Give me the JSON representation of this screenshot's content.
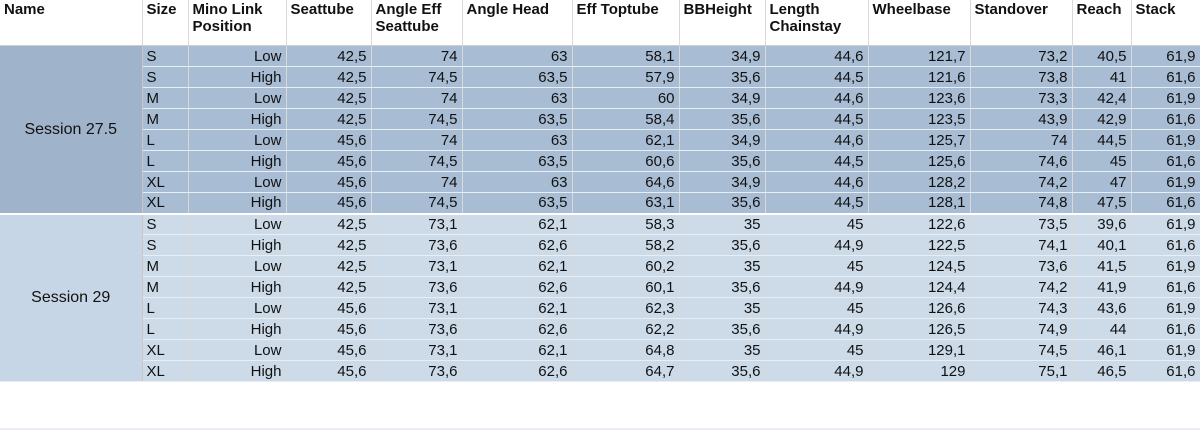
{
  "table": {
    "headers": [
      "Name",
      "Size",
      "Mino Link Position",
      "Seattube",
      "Angle Eff Seattube",
      "Angle Head",
      "Eff Toptube",
      "BBHeight",
      "Length Chainstay",
      "Wheelbase",
      "Standover",
      "Reach",
      "Stack"
    ],
    "groups": [
      {
        "name": "Session 27.5",
        "rows": [
          [
            "S",
            "Low",
            "42,5",
            "74",
            "63",
            "58,1",
            "34,9",
            "44,6",
            "121,7",
            "73,2",
            "40,5",
            "61,9"
          ],
          [
            "S",
            "High",
            "42,5",
            "74,5",
            "63,5",
            "57,9",
            "35,6",
            "44,5",
            "121,6",
            "73,8",
            "41",
            "61,6"
          ],
          [
            "M",
            "Low",
            "42,5",
            "74",
            "63",
            "60",
            "34,9",
            "44,6",
            "123,6",
            "73,3",
            "42,4",
            "61,9"
          ],
          [
            "M",
            "High",
            "42,5",
            "74,5",
            "63,5",
            "58,4",
            "35,6",
            "44,5",
            "123,5",
            "43,9",
            "42,9",
            "61,6"
          ],
          [
            "L",
            "Low",
            "45,6",
            "74",
            "63",
            "62,1",
            "34,9",
            "44,6",
            "125,7",
            "74",
            "44,5",
            "61,9"
          ],
          [
            "L",
            "High",
            "45,6",
            "74,5",
            "63,5",
            "60,6",
            "35,6",
            "44,5",
            "125,6",
            "74,6",
            "45",
            "61,6"
          ],
          [
            "XL",
            "Low",
            "45,6",
            "74",
            "63",
            "64,6",
            "34,9",
            "44,6",
            "128,2",
            "74,2",
            "47",
            "61,9"
          ],
          [
            "XL",
            "High",
            "45,6",
            "74,5",
            "63,5",
            "63,1",
            "35,6",
            "44,5",
            "128,1",
            "74,8",
            "47,5",
            "61,6"
          ]
        ]
      },
      {
        "name": "Session 29",
        "rows": [
          [
            "S",
            "Low",
            "42,5",
            "73,1",
            "62,1",
            "58,3",
            "35",
            "45",
            "122,6",
            "73,5",
            "39,6",
            "61,9"
          ],
          [
            "S",
            "High",
            "42,5",
            "73,6",
            "62,6",
            "58,2",
            "35,6",
            "44,9",
            "122,5",
            "74,1",
            "40,1",
            "61,6"
          ],
          [
            "M",
            "Low",
            "42,5",
            "73,1",
            "62,1",
            "60,2",
            "35",
            "45",
            "124,5",
            "73,6",
            "41,5",
            "61,9"
          ],
          [
            "M",
            "High",
            "42,5",
            "73,6",
            "62,6",
            "60,1",
            "35,6",
            "44,9",
            "124,4",
            "74,2",
            "41,9",
            "61,6"
          ],
          [
            "L",
            "Low",
            "45,6",
            "73,1",
            "62,1",
            "62,3",
            "35",
            "45",
            "126,6",
            "74,3",
            "43,6",
            "61,9"
          ],
          [
            "L",
            "High",
            "45,6",
            "73,6",
            "62,6",
            "62,2",
            "35,6",
            "44,9",
            "126,5",
            "74,9",
            "44",
            "61,6"
          ],
          [
            "XL",
            "Low",
            "45,6",
            "73,1",
            "62,1",
            "64,8",
            "35",
            "45",
            "129,1",
            "74,5",
            "46,1",
            "61,9"
          ],
          [
            "XL",
            "High",
            "45,6",
            "73,6",
            "62,6",
            "64,7",
            "35,6",
            "44,9",
            "129",
            "75,1",
            "46,5",
            "61,6"
          ]
        ]
      }
    ],
    "colors": {
      "group1_bg": "#a8bcd4",
      "group2_bg": "#cddbe9",
      "header_bg": "#ffffff"
    }
  }
}
